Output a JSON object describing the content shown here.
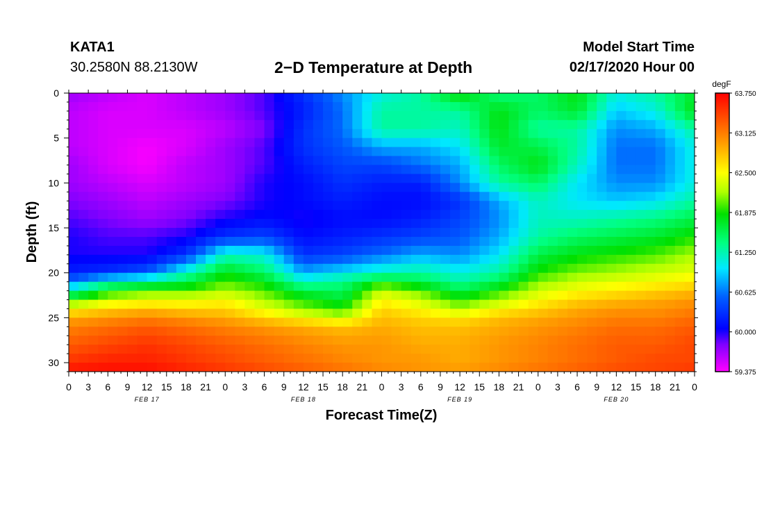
{
  "header": {
    "station_id": "KATA1",
    "coordinates": "30.2580N 88.2130W",
    "title": "2−D Temperature at Depth",
    "model_start_label": "Model Start Time",
    "model_start_value": "02/17/2020 Hour 00"
  },
  "chart_data": {
    "type": "heatmap",
    "title": "2−D Temperature at Depth",
    "xlabel": "Forecast Time(Z)",
    "ylabel": "Depth (ft)",
    "x_hours_range": [
      0,
      96
    ],
    "x_ticks": [
      {
        "h": 0,
        "label": "0"
      },
      {
        "h": 3,
        "label": "3"
      },
      {
        "h": 6,
        "label": "6"
      },
      {
        "h": 9,
        "label": "9"
      },
      {
        "h": 12,
        "label": "12"
      },
      {
        "h": 15,
        "label": "15"
      },
      {
        "h": 18,
        "label": "18"
      },
      {
        "h": 21,
        "label": "21"
      },
      {
        "h": 24,
        "label": "0"
      },
      {
        "h": 27,
        "label": "3"
      },
      {
        "h": 30,
        "label": "6"
      },
      {
        "h": 33,
        "label": "9"
      },
      {
        "h": 36,
        "label": "12"
      },
      {
        "h": 39,
        "label": "15"
      },
      {
        "h": 42,
        "label": "18"
      },
      {
        "h": 45,
        "label": "21"
      },
      {
        "h": 48,
        "label": "0"
      },
      {
        "h": 51,
        "label": "3"
      },
      {
        "h": 54,
        "label": "6"
      },
      {
        "h": 57,
        "label": "9"
      },
      {
        "h": 60,
        "label": "12"
      },
      {
        "h": 63,
        "label": "15"
      },
      {
        "h": 66,
        "label": "18"
      },
      {
        "h": 69,
        "label": "21"
      },
      {
        "h": 72,
        "label": "0"
      },
      {
        "h": 75,
        "label": "3"
      },
      {
        "h": 78,
        "label": "6"
      },
      {
        "h": 81,
        "label": "9"
      },
      {
        "h": 84,
        "label": "12"
      },
      {
        "h": 87,
        "label": "15"
      },
      {
        "h": 90,
        "label": "18"
      },
      {
        "h": 93,
        "label": "21"
      },
      {
        "h": 96,
        "label": "0"
      }
    ],
    "date_labels": [
      {
        "h": 12,
        "label": "FEB 17"
      },
      {
        "h": 36,
        "label": "FEB 18"
      },
      {
        "h": 60,
        "label": "FEB 19"
      },
      {
        "h": 84,
        "label": "FEB 20"
      }
    ],
    "y_range": [
      0,
      31
    ],
    "y_ticks": [
      0,
      5,
      10,
      15,
      20,
      25,
      30
    ],
    "colorbar": {
      "unit": "degF",
      "range": [
        59.375,
        63.75
      ],
      "labels": [
        "63.750",
        "63.125",
        "62.500",
        "61.875",
        "61.250",
        "60.625",
        "60.000",
        "59.375"
      ],
      "label_values": [
        63.75,
        63.125,
        62.5,
        61.875,
        61.25,
        60.625,
        60.0,
        59.375
      ],
      "stops": [
        {
          "v": 59.375,
          "color": "#ff00ff"
        },
        {
          "v": 59.8,
          "color": "#8000ff"
        },
        {
          "v": 60.05,
          "color": "#0000ff"
        },
        {
          "v": 60.55,
          "color": "#0060ff"
        },
        {
          "v": 61.0,
          "color": "#00e8ff"
        },
        {
          "v": 61.4,
          "color": "#00ff80"
        },
        {
          "v": 61.85,
          "color": "#00e000"
        },
        {
          "v": 62.2,
          "color": "#b0ff00"
        },
        {
          "v": 62.5,
          "color": "#ffff00"
        },
        {
          "v": 62.95,
          "color": "#ffa000"
        },
        {
          "v": 63.35,
          "color": "#ff5000"
        },
        {
          "v": 63.75,
          "color": "#ff0000"
        }
      ]
    },
    "grid_depths": [
      0,
      2,
      4,
      6,
      8,
      10,
      12,
      14,
      16,
      18,
      20,
      21,
      22,
      23,
      24,
      25,
      26,
      28,
      30,
      31
    ],
    "grid_hours": [
      0,
      6,
      12,
      18,
      24,
      30,
      36,
      42,
      48,
      54,
      60,
      66,
      72,
      78,
      84,
      90,
      96
    ],
    "temperatures_degF": [
      [
        59.7,
        59.6,
        59.5,
        59.6,
        59.7,
        59.9,
        60.3,
        60.7,
        61.1,
        61.3,
        61.9,
        61.4,
        61.5,
        61.8,
        61.1,
        61.3,
        61.7
      ],
      [
        59.6,
        59.5,
        59.5,
        59.6,
        59.7,
        59.9,
        60.2,
        60.6,
        61.3,
        61.3,
        61.3,
        61.8,
        61.5,
        61.7,
        60.9,
        61.1,
        61.8
      ],
      [
        59.6,
        59.5,
        59.5,
        59.5,
        59.6,
        59.8,
        60.3,
        60.6,
        61.3,
        61.3,
        61.2,
        61.8,
        61.3,
        61.3,
        60.7,
        60.8,
        61.3
      ],
      [
        59.6,
        59.5,
        59.4,
        59.5,
        59.7,
        59.9,
        60.3,
        60.5,
        60.8,
        60.8,
        61.0,
        61.7,
        61.6,
        61.3,
        60.6,
        60.6,
        61.1
      ],
      [
        59.7,
        59.5,
        59.4,
        59.6,
        59.7,
        59.9,
        60.2,
        60.4,
        60.4,
        60.6,
        60.8,
        61.5,
        61.8,
        61.2,
        60.6,
        60.6,
        61.1
      ],
      [
        59.7,
        59.6,
        59.5,
        59.6,
        59.7,
        60.0,
        60.1,
        60.3,
        60.2,
        60.2,
        60.7,
        61.3,
        61.5,
        61.0,
        60.7,
        60.7,
        61.1
      ],
      [
        59.8,
        59.7,
        59.6,
        59.7,
        59.8,
        60.0,
        60.1,
        60.2,
        60.1,
        60.1,
        60.3,
        60.8,
        61.2,
        61.0,
        60.9,
        61.0,
        61.3
      ],
      [
        59.9,
        59.8,
        59.7,
        59.8,
        60.0,
        60.1,
        60.0,
        60.1,
        60.1,
        60.2,
        60.4,
        60.7,
        61.2,
        61.2,
        61.3,
        61.4,
        61.6
      ],
      [
        60.0,
        59.9,
        59.9,
        60.0,
        60.3,
        60.4,
        60.1,
        60.2,
        60.3,
        60.4,
        60.5,
        60.8,
        61.3,
        61.5,
        61.6,
        61.7,
        61.9
      ],
      [
        60.0,
        60.0,
        60.0,
        60.3,
        61.2,
        61.1,
        60.3,
        60.4,
        60.6,
        60.8,
        60.7,
        61.0,
        61.6,
        61.8,
        61.9,
        62.0,
        62.2
      ],
      [
        60.2,
        60.3,
        60.5,
        61.2,
        61.8,
        61.5,
        60.8,
        61.0,
        61.2,
        61.3,
        61.1,
        61.3,
        61.9,
        62.1,
        62.2,
        62.3,
        62.4
      ],
      [
        60.6,
        61.2,
        61.4,
        61.6,
        62.0,
        61.8,
        61.2,
        61.4,
        61.8,
        61.6,
        61.3,
        61.6,
        62.1,
        62.3,
        62.4,
        62.5,
        62.6
      ],
      [
        61.2,
        61.8,
        62.0,
        62.0,
        62.2,
        62.0,
        61.6,
        61.5,
        62.3,
        62.0,
        61.6,
        61.9,
        62.3,
        62.5,
        62.6,
        62.7,
        62.8
      ],
      [
        61.9,
        62.3,
        62.4,
        62.4,
        62.5,
        62.2,
        61.9,
        61.7,
        62.5,
        62.3,
        61.9,
        62.2,
        62.5,
        62.7,
        62.8,
        62.9,
        63.0
      ],
      [
        62.5,
        62.7,
        62.8,
        62.7,
        62.7,
        62.4,
        62.1,
        61.9,
        62.7,
        62.5,
        62.2,
        62.5,
        62.7,
        62.9,
        63.0,
        63.0,
        63.1
      ],
      [
        62.9,
        63.0,
        63.1,
        63.0,
        62.9,
        62.7,
        62.5,
        62.3,
        62.8,
        62.7,
        62.6,
        62.8,
        62.9,
        63.0,
        63.1,
        63.1,
        63.2
      ],
      [
        63.1,
        63.2,
        63.3,
        63.2,
        63.1,
        63.0,
        62.9,
        62.8,
        62.9,
        62.8,
        62.8,
        62.9,
        63.0,
        63.1,
        63.2,
        63.2,
        63.3
      ],
      [
        63.3,
        63.4,
        63.5,
        63.4,
        63.3,
        63.2,
        63.1,
        63.0,
        63.0,
        62.9,
        62.9,
        63.0,
        63.1,
        63.2,
        63.3,
        63.3,
        63.4
      ],
      [
        63.5,
        63.6,
        63.6,
        63.5,
        63.4,
        63.3,
        63.2,
        63.1,
        63.0,
        63.0,
        62.9,
        63.0,
        63.1,
        63.2,
        63.3,
        63.4,
        63.4
      ],
      [
        63.7,
        63.7,
        63.7,
        63.6,
        63.5,
        63.4,
        63.3,
        63.2,
        63.1,
        63.0,
        63.0,
        63.1,
        63.2,
        63.3,
        63.4,
        63.4,
        63.5
      ]
    ]
  }
}
